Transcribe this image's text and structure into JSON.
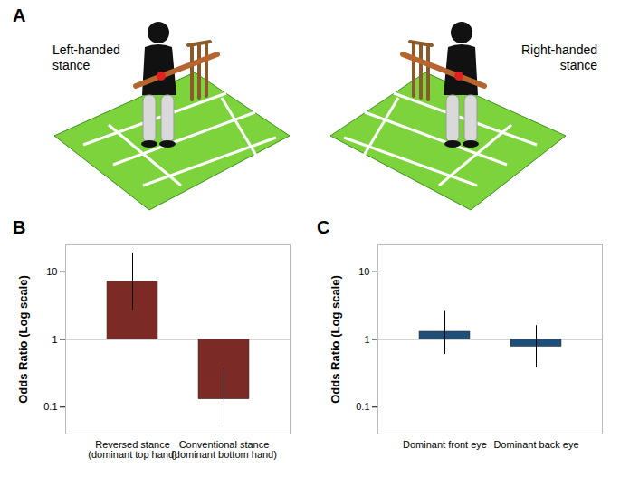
{
  "diagram": {
    "panel_label": "A",
    "labels": [
      "Left-handed stance",
      "Right-handed stance"
    ]
  },
  "chart_data": [
    {
      "panel_label": "B",
      "type": "bar",
      "ylabel": "Odds Ratio (Log scale)",
      "categories": [
        "Reversed stance (dominant top hand)",
        "Conventional stance (dominant bottom hand)"
      ],
      "values": [
        7.2,
        0.13
      ],
      "error_low": [
        2.7,
        0.05
      ],
      "error_high": [
        19,
        0.36
      ],
      "baseline": 1,
      "color": "#7b2a26",
      "log": "y",
      "ylim": [
        0.04,
        25
      ],
      "yticks": [
        0.1,
        1,
        10
      ],
      "grid": false
    },
    {
      "panel_label": "C",
      "type": "bar",
      "ylabel": "Odds Ratio (Log scale)",
      "categories": [
        "Dominant front eye",
        "Dominant back eye"
      ],
      "values": [
        1.3,
        0.78
      ],
      "error_low": [
        0.6,
        0.38
      ],
      "error_high": [
        2.6,
        1.6
      ],
      "baseline": 1,
      "color": "#1f4e79",
      "log": "y",
      "ylim": [
        0.04,
        25
      ],
      "yticks": [
        0.1,
        1,
        10
      ],
      "grid": false
    }
  ]
}
